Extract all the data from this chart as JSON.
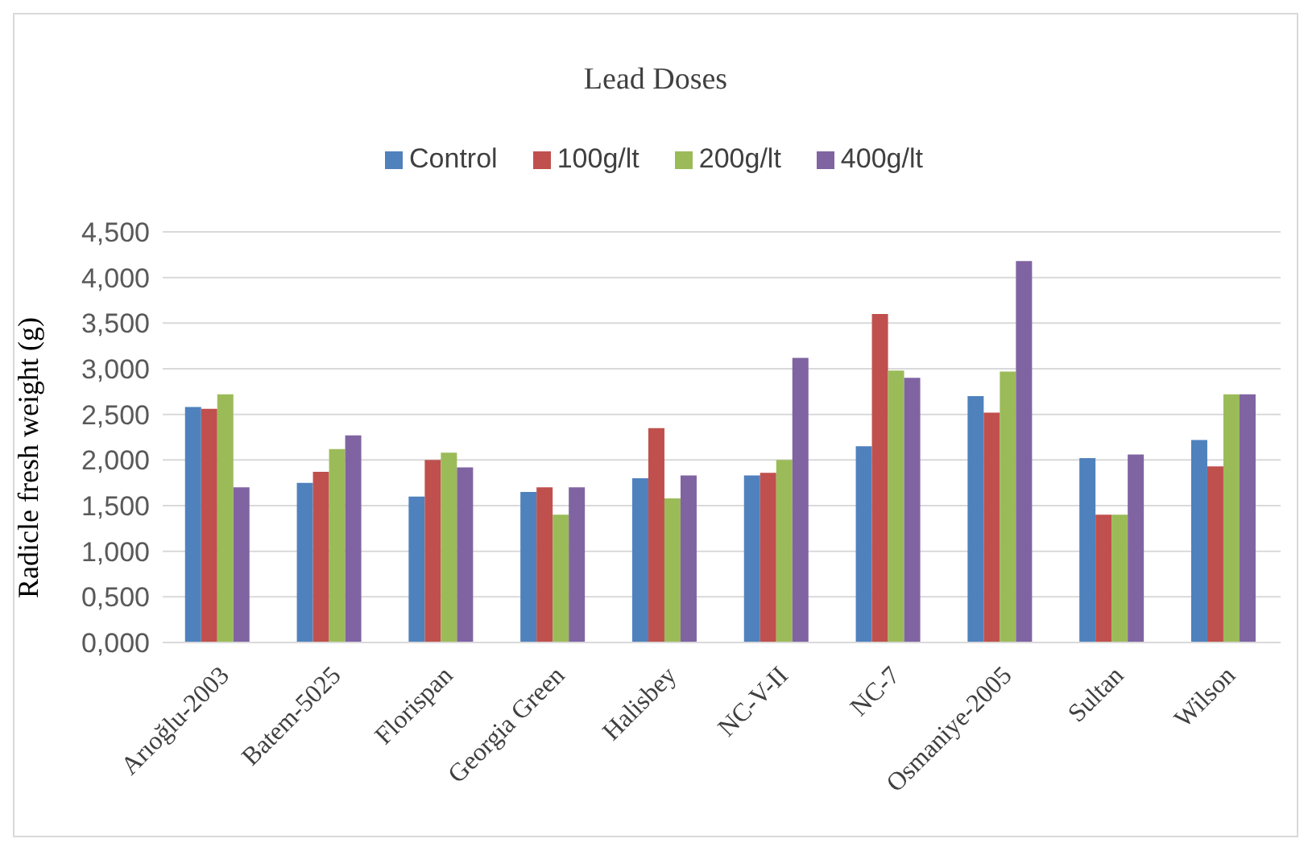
{
  "chart_data": {
    "type": "bar",
    "title": "Lead Doses",
    "ylabel": "Radicle fresh weight  (g)",
    "categories": [
      "Arıoğlu-2003",
      "Batem-5025",
      "Florispan",
      "Georgia Green",
      "Halisbey",
      "NC-V-II",
      "NC-7",
      "Osmaniye-2005",
      "Sultan",
      "Wilson"
    ],
    "series": [
      {
        "name": "Control",
        "color": "#4f81bd",
        "values": [
          2.58,
          1.75,
          1.6,
          1.65,
          1.8,
          1.83,
          2.15,
          2.7,
          2.02,
          2.22
        ]
      },
      {
        "name": "100g/lt",
        "color": "#c0504d",
        "values": [
          2.56,
          1.87,
          2.0,
          1.7,
          2.35,
          1.86,
          3.6,
          2.52,
          1.4,
          1.93
        ]
      },
      {
        "name": "200g/lt",
        "color": "#9bbb59",
        "values": [
          2.72,
          2.12,
          2.08,
          1.4,
          1.58,
          2.0,
          2.98,
          2.97,
          1.4,
          2.72
        ]
      },
      {
        "name": "400g/lt",
        "color": "#8064a2",
        "values": [
          1.7,
          2.27,
          1.92,
          1.7,
          1.83,
          3.12,
          2.9,
          4.18,
          2.06,
          2.72
        ]
      }
    ],
    "ylim": [
      0,
      4.5
    ],
    "yticks": [
      {
        "value": 0,
        "label": "0,000"
      },
      {
        "value": 0.5,
        "label": "0,500"
      },
      {
        "value": 1,
        "label": "1,000"
      },
      {
        "value": 1.5,
        "label": "1,500"
      },
      {
        "value": 2,
        "label": "2,000"
      },
      {
        "value": 2.5,
        "label": "2,500"
      },
      {
        "value": 3,
        "label": "3,000"
      },
      {
        "value": 3.5,
        "label": "3,500"
      },
      {
        "value": 4,
        "label": "4,000"
      },
      {
        "value": 4.5,
        "label": "4,500"
      }
    ],
    "grid": "y",
    "legend": "top"
  }
}
